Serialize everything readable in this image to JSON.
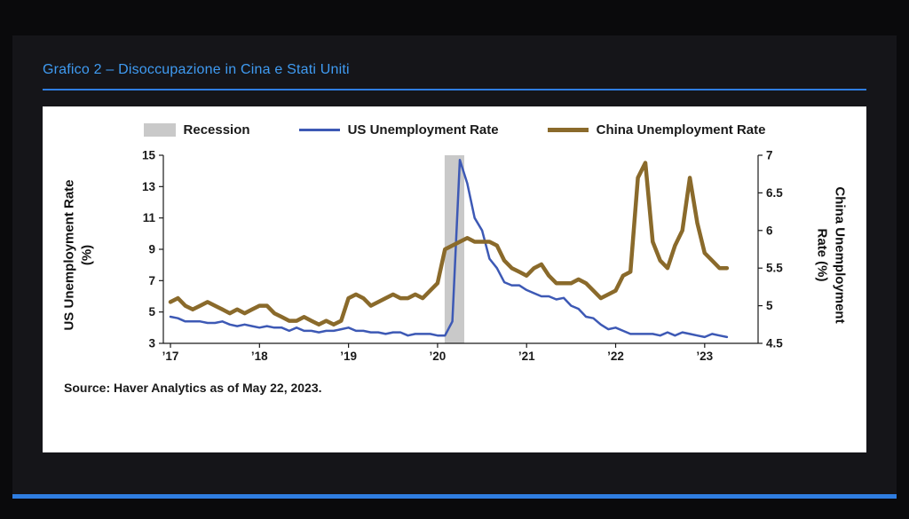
{
  "slide": {
    "title": "Grafico 2 – Disoccupazione in Cina e Stati Uniti",
    "accent_color": "#2f7de1",
    "title_color": "#3f9bf2",
    "panel_background": "#151519",
    "page_background": "#0a0a0c"
  },
  "chart_data": {
    "type": "line",
    "title": "",
    "source": "Source: Haver Analytics as of May 22, 2023.",
    "legend": [
      {
        "label": "Recession",
        "type": "band",
        "color": "#c9c9c9"
      },
      {
        "label": "US Unemployment Rate",
        "type": "line",
        "color": "#3d59b5"
      },
      {
        "label": "China Unemployment Rate",
        "type": "line",
        "color": "#8a6a2b"
      }
    ],
    "left_axis": {
      "label_line1": "US Unemployment Rate",
      "label_line2": "(%)",
      "range": [
        3,
        15
      ],
      "ticks": [
        3,
        5,
        7,
        9,
        11,
        13,
        15
      ]
    },
    "right_axis": {
      "label_line1": "China Unemployment",
      "label_line2": "Rate (%)",
      "range": [
        4.5,
        7
      ],
      "ticks": [
        4.5,
        5,
        5.5,
        6,
        6.5,
        7
      ]
    },
    "x_axis": {
      "ticks": [
        {
          "value": 2017,
          "label": "'17"
        },
        {
          "value": 2018,
          "label": "'18"
        },
        {
          "value": 2019,
          "label": "'19"
        },
        {
          "value": 2020,
          "label": "'20"
        },
        {
          "value": 2021,
          "label": "'21"
        },
        {
          "value": 2022,
          "label": "'22"
        },
        {
          "value": 2023,
          "label": "'23"
        }
      ]
    },
    "x_range": [
      2016.92,
      2023.6
    ],
    "x_start_year": 2017,
    "points_per_year": 12,
    "recession_band": [
      2020.08,
      2020.3
    ],
    "series": [
      {
        "name": "US Unemployment Rate",
        "axis": "left",
        "color": "#3d59b5",
        "width": 2.5,
        "values": [
          4.7,
          4.6,
          4.4,
          4.4,
          4.4,
          4.3,
          4.3,
          4.4,
          4.2,
          4.1,
          4.2,
          4.1,
          4.0,
          4.1,
          4.0,
          4.0,
          3.8,
          4.0,
          3.8,
          3.8,
          3.7,
          3.8,
          3.8,
          3.9,
          4.0,
          3.8,
          3.8,
          3.7,
          3.7,
          3.6,
          3.7,
          3.7,
          3.5,
          3.6,
          3.6,
          3.6,
          3.5,
          3.5,
          4.4,
          14.7,
          13.2,
          11.0,
          10.2,
          8.4,
          7.8,
          6.9,
          6.7,
          6.7,
          6.4,
          6.2,
          6.0,
          6.0,
          5.8,
          5.9,
          5.4,
          5.2,
          4.7,
          4.6,
          4.2,
          3.9,
          4.0,
          3.8,
          3.6,
          3.6,
          3.6,
          3.6,
          3.5,
          3.7,
          3.5,
          3.7,
          3.6,
          3.5,
          3.4,
          3.6,
          3.5,
          3.4
        ]
      },
      {
        "name": "China Unemployment Rate",
        "axis": "right",
        "color": "#8a6a2b",
        "width": 4.5,
        "values": [
          5.05,
          5.1,
          5.0,
          4.95,
          5.0,
          5.05,
          5.0,
          4.95,
          4.9,
          4.95,
          4.9,
          4.95,
          5.0,
          5.0,
          4.9,
          4.85,
          4.8,
          4.8,
          4.85,
          4.8,
          4.75,
          4.8,
          4.75,
          4.8,
          5.1,
          5.15,
          5.1,
          5.0,
          5.05,
          5.1,
          5.15,
          5.1,
          5.1,
          5.15,
          5.1,
          5.2,
          5.3,
          5.75,
          5.8,
          5.85,
          5.9,
          5.85,
          5.85,
          5.85,
          5.8,
          5.6,
          5.5,
          5.45,
          5.4,
          5.5,
          5.55,
          5.4,
          5.3,
          5.3,
          5.3,
          5.35,
          5.3,
          5.2,
          5.1,
          5.15,
          5.2,
          5.4,
          5.45,
          6.7,
          6.9,
          5.85,
          5.6,
          5.5,
          5.8,
          6.0,
          6.7,
          6.1,
          5.7,
          5.6,
          5.5,
          5.5
        ]
      }
    ]
  }
}
